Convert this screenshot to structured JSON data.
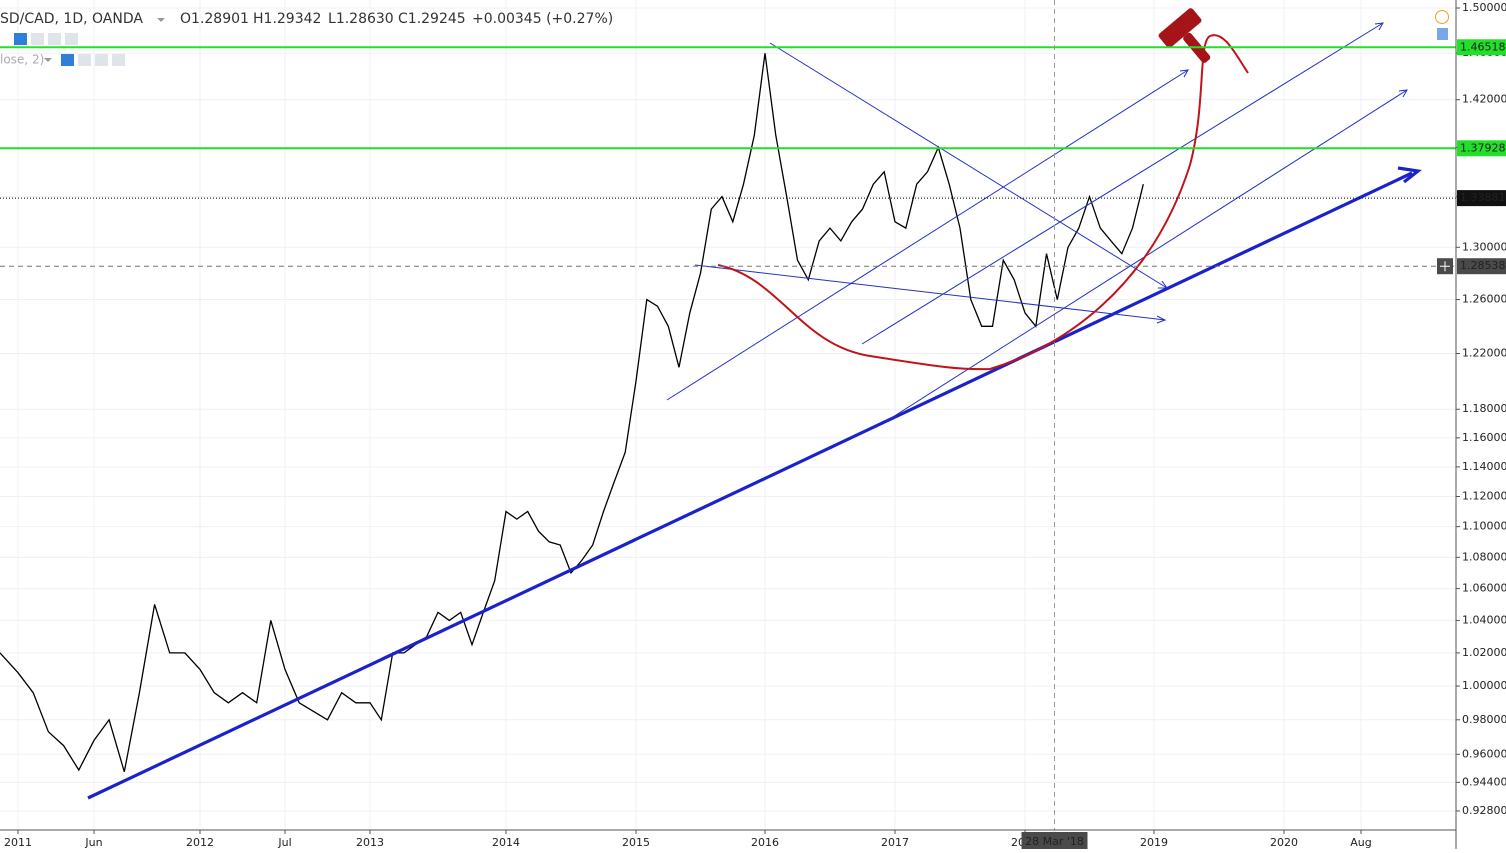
{
  "header": {
    "symbol": "SD/CAD, 1D, OANDA",
    "ohlc": [
      {
        "key": "O",
        "value": "1.28901"
      },
      {
        "key": "H",
        "value": "1.29342"
      },
      {
        "key": "L",
        "value": "1.28630"
      },
      {
        "key": "C",
        "value": "1.29245"
      }
    ],
    "change": "+0.00345 (+0.27%)",
    "indicator": "lose, 2)"
  },
  "chart_data": {
    "type": "line",
    "log_scale": true,
    "grid": true,
    "color": "#000000",
    "x": [
      "2010-12",
      "2011-01",
      "2011-02",
      "2011-03",
      "2011-04",
      "2011-05",
      "2011-06",
      "2011-07",
      "2011-08",
      "2011-09",
      "2011-10",
      "2011-11",
      "2011-12",
      "2012-01",
      "2012-02",
      "2012-03",
      "2012-04",
      "2012-05",
      "2012-06",
      "2012-07",
      "2012-08",
      "2012-09",
      "2012-10",
      "2012-11",
      "2012-12",
      "2013-01",
      "2013-02",
      "2013-03",
      "2013-04",
      "2013-05",
      "2013-06",
      "2013-07",
      "2013-08",
      "2013-09",
      "2013-10",
      "2013-11",
      "2013-12",
      "2014-01",
      "2014-02",
      "2014-03",
      "2014-04",
      "2014-05",
      "2014-06",
      "2014-07",
      "2014-08",
      "2014-09",
      "2014-10",
      "2014-11",
      "2014-12",
      "2015-01",
      "2015-02",
      "2015-03",
      "2015-04",
      "2015-05",
      "2015-06",
      "2015-07",
      "2015-08",
      "2015-09",
      "2015-10",
      "2015-11",
      "2015-12",
      "2016-01",
      "2016-02",
      "2016-03",
      "2016-04",
      "2016-05",
      "2016-06",
      "2016-07",
      "2016-08",
      "2016-09",
      "2016-10",
      "2016-11",
      "2016-12",
      "2017-01",
      "2017-02",
      "2017-03",
      "2017-04",
      "2017-05",
      "2017-06",
      "2017-07",
      "2017-08",
      "2017-09",
      "2017-10",
      "2017-11",
      "2017-12",
      "2018-01",
      "2018-02",
      "2018-03",
      "2018-04",
      "2018-05",
      "2018-06",
      "2018-07",
      "2018-08",
      "2018-09",
      "2018-10",
      "2018-11",
      "2018-12"
    ],
    "values": [
      1.02,
      1.008,
      0.996,
      0.973,
      0.965,
      0.951,
      0.968,
      0.98,
      0.95,
      0.996,
      1.05,
      1.02,
      1.02,
      1.01,
      0.996,
      0.99,
      0.996,
      0.99,
      1.04,
      1.01,
      0.99,
      0.985,
      0.98,
      0.996,
      0.99,
      0.99,
      0.98,
      1.02,
      1.02,
      1.025,
      1.03,
      1.045,
      1.04,
      1.045,
      1.025,
      1.045,
      1.065,
      1.11,
      1.105,
      1.11,
      1.097,
      1.09,
      1.088,
      1.07,
      1.078,
      1.088,
      1.11,
      1.13,
      1.15,
      1.2,
      1.26,
      1.255,
      1.24,
      1.21,
      1.25,
      1.28,
      1.33,
      1.34,
      1.32,
      1.35,
      1.39,
      1.46,
      1.39,
      1.34,
      1.29,
      1.275,
      1.305,
      1.315,
      1.305,
      1.32,
      1.33,
      1.35,
      1.36,
      1.32,
      1.315,
      1.35,
      1.36,
      1.38,
      1.35,
      1.315,
      1.26,
      1.24,
      1.24,
      1.29,
      1.275,
      1.25,
      1.24,
      1.295,
      1.26,
      1.3,
      1.315,
      1.34,
      1.315,
      1.305,
      1.295,
      1.315,
      1.35
    ],
    "xlim": [
      "2010-12",
      "2021-04"
    ],
    "xticks": [
      {
        "value": "2011-01",
        "label": "2011"
      },
      {
        "value": "2011-06",
        "label": "Jun"
      },
      {
        "value": "2012-01",
        "label": "2012"
      },
      {
        "value": "2012-07",
        "label": "Jul"
      },
      {
        "value": "2013-01",
        "label": "2013"
      },
      {
        "value": "2014-01",
        "label": "2014"
      },
      {
        "value": "2015-01",
        "label": "2015"
      },
      {
        "value": "2016-01",
        "label": "2016"
      },
      {
        "value": "2017-01",
        "label": "2017"
      },
      {
        "value": "2018-01",
        "label": "2018"
      },
      {
        "value": "2019-01",
        "label": "2019"
      },
      {
        "value": "2020-01",
        "label": "2020"
      },
      {
        "value": "2020-08",
        "label": "Aug"
      }
    ],
    "ylim": [
      0.9175,
      1.5072
    ],
    "yticks": [
      {
        "value": 1.5,
        "label": "1.50000"
      },
      {
        "value": 1.46,
        "label": "1.46000"
      },
      {
        "value": 1.42,
        "label": "1.42000"
      },
      {
        "value": 1.38,
        "label": "1.38000"
      },
      {
        "value": 1.34,
        "label": "1.34000"
      },
      {
        "value": 1.3,
        "label": "1.30000"
      },
      {
        "value": 1.26,
        "label": "1.26000"
      },
      {
        "value": 1.22,
        "label": "1.22000"
      },
      {
        "value": 1.18,
        "label": "1.18000"
      },
      {
        "value": 1.16,
        "label": "1.16000"
      },
      {
        "value": 1.14,
        "label": "1.14000"
      },
      {
        "value": 1.12,
        "label": "1.12000"
      },
      {
        "value": 1.1,
        "label": "1.10000"
      },
      {
        "value": 1.08,
        "label": "1.08000"
      },
      {
        "value": 1.06,
        "label": "1.06000"
      },
      {
        "value": 1.04,
        "label": "1.04000"
      },
      {
        "value": 1.02,
        "label": "1.02000"
      },
      {
        "value": 1.0,
        "label": "1.00000"
      },
      {
        "value": 0.98,
        "label": "0.98000"
      },
      {
        "value": 0.96,
        "label": "0.96000"
      },
      {
        "value": 0.944,
        "label": "0.94400"
      },
      {
        "value": 0.928,
        "label": "0.92800"
      }
    ],
    "levels": [
      {
        "value": 1.46518,
        "color": "#22e02a"
      },
      {
        "value": 1.37928,
        "color": "#22e02a"
      }
    ],
    "last_price": 1.33881,
    "crosshair": {
      "x": "2018-03",
      "label": "28 Mar '18",
      "price": 1.28538
    }
  }
}
